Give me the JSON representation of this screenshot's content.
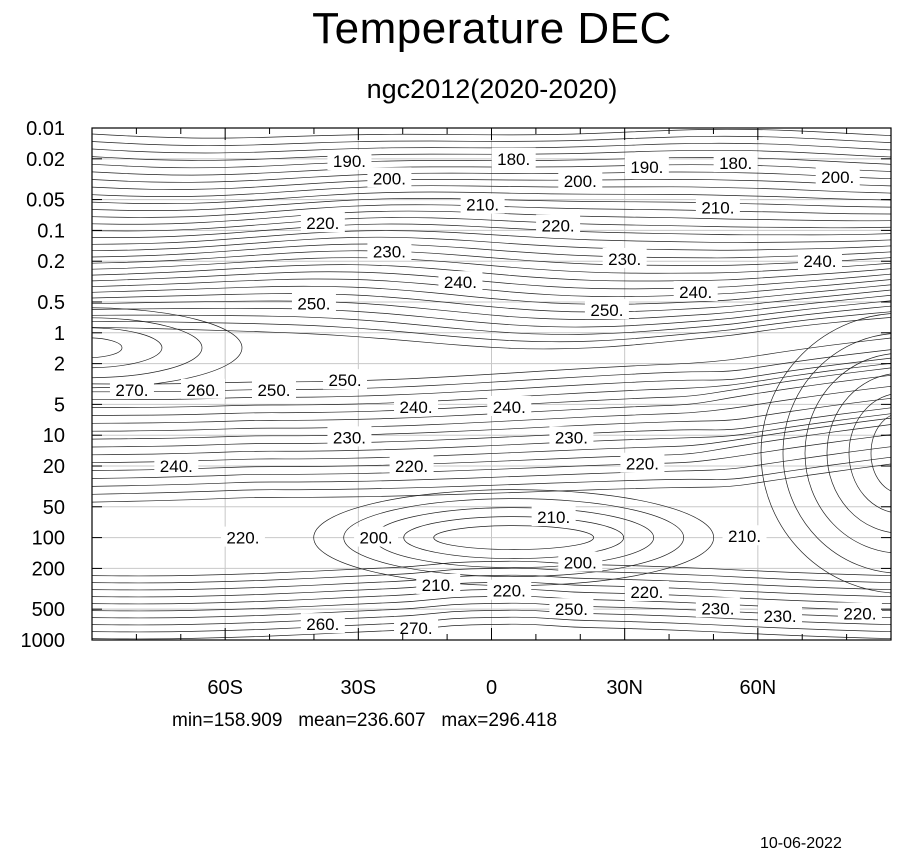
{
  "chart_data": {
    "type": "contour",
    "title": "Temperature DEC",
    "subtitle": "ngc2012(2020-2020)",
    "x_ticks": [
      {
        "value": -60,
        "label": "60S"
      },
      {
        "value": -30,
        "label": "30S"
      },
      {
        "value": 0,
        "label": "0"
      },
      {
        "value": 30,
        "label": "30N"
      },
      {
        "value": 60,
        "label": "60N"
      }
    ],
    "xlim": [
      -90,
      90
    ],
    "y_scale": "log",
    "y_reversed": true,
    "ylim": [
      1000,
      0.01
    ],
    "y_ticks": [
      "0.01",
      "0.02",
      "0.05",
      "0.1",
      "0.2",
      "0.5",
      "1",
      "2",
      "5",
      "10",
      "20",
      "50",
      "100",
      "200",
      "500",
      "1000"
    ],
    "grid": true,
    "contour_interval": 5,
    "contour_labels": [
      {
        "text": "190.",
        "lat": -32,
        "p": 0.021
      },
      {
        "text": "180.",
        "lat": 5,
        "p": 0.02
      },
      {
        "text": "190.",
        "lat": 35,
        "p": 0.024
      },
      {
        "text": "180.",
        "lat": 55,
        "p": 0.022
      },
      {
        "text": "200.",
        "lat": -23,
        "p": 0.031
      },
      {
        "text": "200.",
        "lat": 20,
        "p": 0.033
      },
      {
        "text": "200.",
        "lat": 78,
        "p": 0.03
      },
      {
        "text": "210.",
        "lat": -2,
        "p": 0.056
      },
      {
        "text": "210.",
        "lat": 51,
        "p": 0.06
      },
      {
        "text": "220.",
        "lat": -38,
        "p": 0.085
      },
      {
        "text": "220.",
        "lat": 15,
        "p": 0.09
      },
      {
        "text": "230.",
        "lat": -23,
        "p": 0.16
      },
      {
        "text": "230.",
        "lat": 30,
        "p": 0.19
      },
      {
        "text": "240.",
        "lat": -7,
        "p": 0.32
      },
      {
        "text": "240.",
        "lat": 46,
        "p": 0.4
      },
      {
        "text": "240.",
        "lat": 74,
        "p": 0.2
      },
      {
        "text": "250.",
        "lat": -40,
        "p": 0.52
      },
      {
        "text": "250.",
        "lat": 26,
        "p": 0.6
      },
      {
        "text": "270.",
        "lat": -81,
        "p": 3.6
      },
      {
        "text": "260.",
        "lat": -65,
        "p": 3.6
      },
      {
        "text": "250.",
        "lat": -49,
        "p": 3.6
      },
      {
        "text": "250.",
        "lat": -33,
        "p": 2.9
      },
      {
        "text": "240.",
        "lat": -17,
        "p": 5.3
      },
      {
        "text": "240.",
        "lat": 4,
        "p": 5.3
      },
      {
        "text": "230.",
        "lat": -32,
        "p": 10.5
      },
      {
        "text": "230.",
        "lat": 18,
        "p": 10.5
      },
      {
        "text": "240.",
        "lat": -71,
        "p": 20
      },
      {
        "text": "220.",
        "lat": -18,
        "p": 20
      },
      {
        "text": "220.",
        "lat": 34,
        "p": 19
      },
      {
        "text": "210.",
        "lat": 14,
        "p": 63
      },
      {
        "text": "220.",
        "lat": -56,
        "p": 100
      },
      {
        "text": "200.",
        "lat": -26,
        "p": 100
      },
      {
        "text": "210.",
        "lat": 57,
        "p": 97
      },
      {
        "text": "200.",
        "lat": 20,
        "p": 175
      },
      {
        "text": "210.",
        "lat": -12,
        "p": 290
      },
      {
        "text": "220.",
        "lat": 4,
        "p": 330
      },
      {
        "text": "220.",
        "lat": 35,
        "p": 340
      },
      {
        "text": "230.",
        "lat": 51,
        "p": 490
      },
      {
        "text": "230.",
        "lat": 65,
        "p": 580
      },
      {
        "text": "220.",
        "lat": 83,
        "p": 550
      },
      {
        "text": "250.",
        "lat": 18,
        "p": 500
      },
      {
        "text": "260.",
        "lat": -38,
        "p": 700
      },
      {
        "text": "270.",
        "lat": -17,
        "p": 760
      }
    ],
    "stats": {
      "min": 158.909,
      "mean": 236.607,
      "max": 296.418
    }
  },
  "stats_text": "min=158.909   mean=236.607   max=296.418",
  "date": "10-06-2022"
}
